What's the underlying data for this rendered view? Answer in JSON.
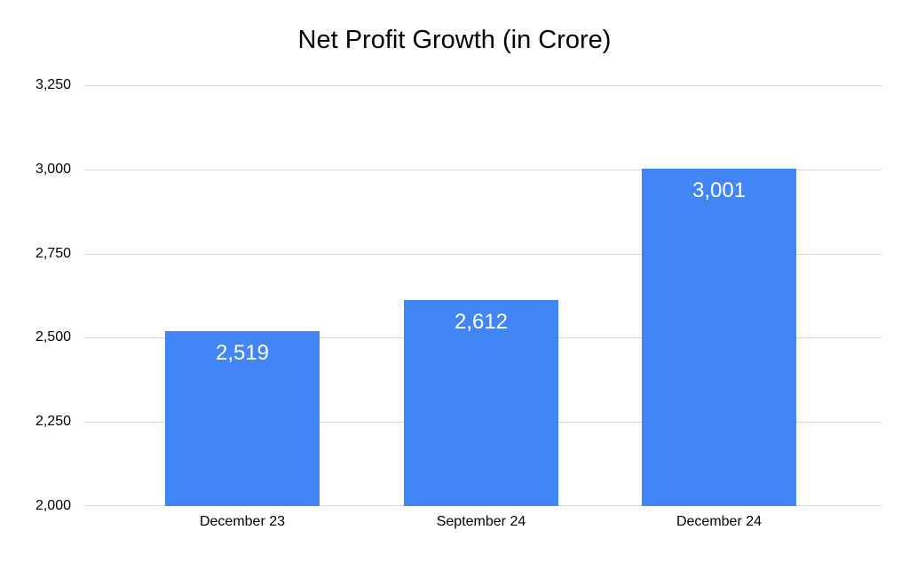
{
  "page": {
    "background": "#ffffff"
  },
  "chart_data": {
    "type": "bar",
    "title": "Net Profit Growth (in Crore)",
    "categories": [
      "December 23",
      "September 24",
      "December 24"
    ],
    "values": [
      2519,
      2612,
      3001
    ],
    "value_labels": [
      "2,519",
      "2,612",
      "3,001"
    ],
    "xlabel": "",
    "ylabel": "",
    "ylim": [
      2000,
      3250
    ],
    "ytick_step": 250,
    "ytick_labels": [
      "2,000",
      "2,250",
      "2,500",
      "2,750",
      "3,000",
      "3,250"
    ],
    "grid": true,
    "legend_position": "none",
    "bar_color": "#4285f4",
    "gridline_color": "#d9d9d9",
    "title_color": "#000000",
    "axis_label_color": "#000000",
    "value_label_color": "#ffffff"
  }
}
